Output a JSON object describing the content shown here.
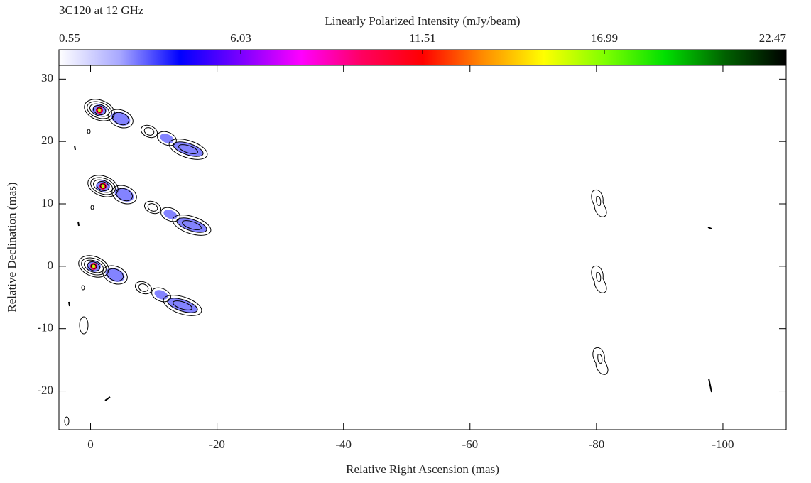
{
  "chart_data": {
    "type": "map",
    "title": "3C120 at 12 GHz",
    "x_label": "Relative Right Ascension (mas)",
    "y_label": "Relative Declination (mas)",
    "xlim": [
      5,
      -110
    ],
    "xticks": [
      0,
      -20,
      -40,
      -60,
      -80,
      -100
    ],
    "ylim": [
      -26.2,
      32.2
    ],
    "yticks": [
      30,
      20,
      10,
      0,
      -10,
      -20
    ],
    "colorbar": {
      "label": "Linearly Polarized Intensity (mJy/beam)",
      "lim": [
        0.55,
        22.47
      ],
      "ticks": [
        0.55,
        6.03,
        11.51,
        16.99,
        22.47
      ],
      "colors": [
        "#ffffff",
        "#a8a8ff",
        "#0000ff",
        "#7a00ff",
        "#ff00ff",
        "#ff0060",
        "#ff0000",
        "#ff8c00",
        "#ffff00",
        "#80ff00",
        "#00e000",
        "#006000",
        "#000000"
      ]
    }
  }
}
